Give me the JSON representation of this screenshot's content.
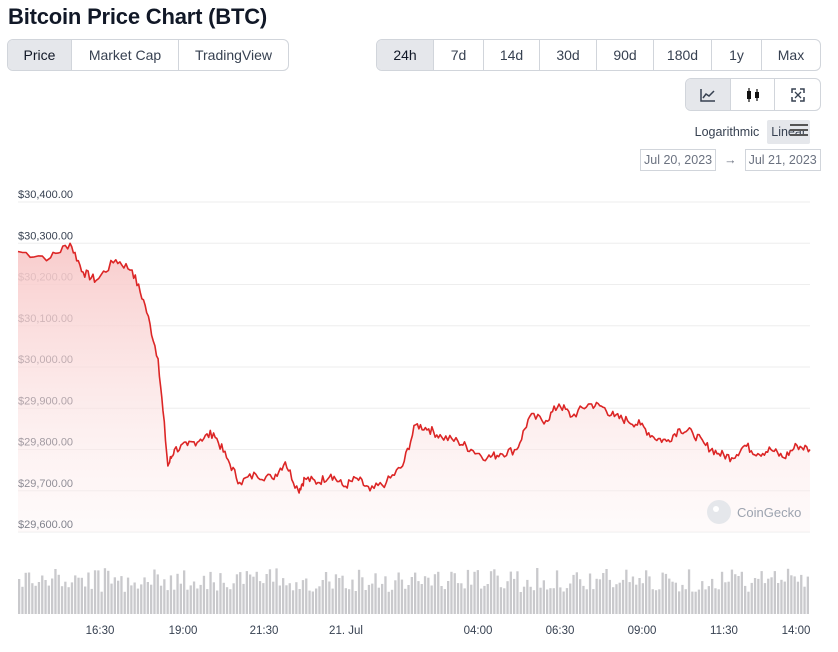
{
  "page": {
    "title": "Bitcoin Price Chart (BTC)"
  },
  "type_tabs": [
    {
      "label": "Price",
      "active": true
    },
    {
      "label": "Market Cap",
      "active": false
    },
    {
      "label": "TradingView",
      "active": false
    }
  ],
  "range_tabs": [
    {
      "label": "24h",
      "active": true
    },
    {
      "label": "7d",
      "active": false
    },
    {
      "label": "14d",
      "active": false
    },
    {
      "label": "30d",
      "active": false
    },
    {
      "label": "90d",
      "active": false
    },
    {
      "label": "180d",
      "active": false
    },
    {
      "label": "1y",
      "active": false
    },
    {
      "label": "Max",
      "active": false
    }
  ],
  "view_icons": [
    "line-chart-icon",
    "candlestick-icon",
    "fullscreen-icon"
  ],
  "scale": {
    "log_label": "Logarithmic",
    "linear_label": "Linear",
    "selected": "Linear"
  },
  "date_range": {
    "from": "Jul 20, 2023",
    "to": "Jul 21, 2023",
    "arrow": "→"
  },
  "watermark": "CoinGecko",
  "colors": {
    "line": "#dc2626",
    "fill_top": "#f8c9c9",
    "volume": "#c9c9cc",
    "grid": "#eeeeee"
  },
  "chart_data": {
    "type": "area",
    "yticks": [
      "$30,400.00",
      "$30,300.00",
      "$30,200.00",
      "$30,100.00",
      "$30,000.00",
      "$29,900.00",
      "$29,800.00",
      "$29,700.00",
      "$29,600.00"
    ],
    "ylim": [
      29600,
      30400
    ],
    "xticks": [
      "16:30",
      "19:00",
      "21:30",
      "21. Jul",
      "04:00",
      "06:30",
      "09:00",
      "11:30",
      "14:00"
    ],
    "x_hours": [
      0,
      1,
      1.6,
      2,
      2.4,
      3,
      3.5,
      3.9,
      4.3,
      4.6,
      4.8,
      5.2,
      5.6,
      6,
      6.4,
      6.8,
      7.3,
      7.8,
      8.2,
      8.6,
      8.8,
      9.2,
      9.6,
      10,
      10.4,
      10.8,
      11.3,
      11.8,
      12.2,
      12.6,
      13,
      13.5,
      13.9,
      14.4,
      14.8,
      15.3,
      15.7,
      16.2,
      16.6,
      17,
      17.5,
      17.9,
      18.3,
      18.7,
      19.1,
      19.5,
      19.9,
      20.3,
      20.7,
      21.1,
      21.5,
      21.9,
      22.3,
      22.7,
      23.1,
      23.5,
      23.9,
      24.3
    ],
    "series": [
      {
        "values": [
          30280,
          30265,
          30300,
          30230,
          30210,
          30260,
          30235,
          30150,
          30020,
          29760,
          29800,
          29810,
          29825,
          29840,
          29780,
          29720,
          29740,
          29730,
          29770,
          29700,
          29730,
          29720,
          29740,
          29710,
          29730,
          29700,
          29720,
          29760,
          29860,
          29850,
          29830,
          29820,
          29800,
          29780,
          29790,
          29800,
          29880,
          29870,
          29910,
          29880,
          29910,
          29905,
          29880,
          29870,
          29860,
          29830,
          29820,
          29850,
          29840,
          29810,
          29790,
          29780,
          29810,
          29790,
          29800,
          29780,
          29810,
          29800
        ]
      }
    ],
    "volume_count": 240
  }
}
